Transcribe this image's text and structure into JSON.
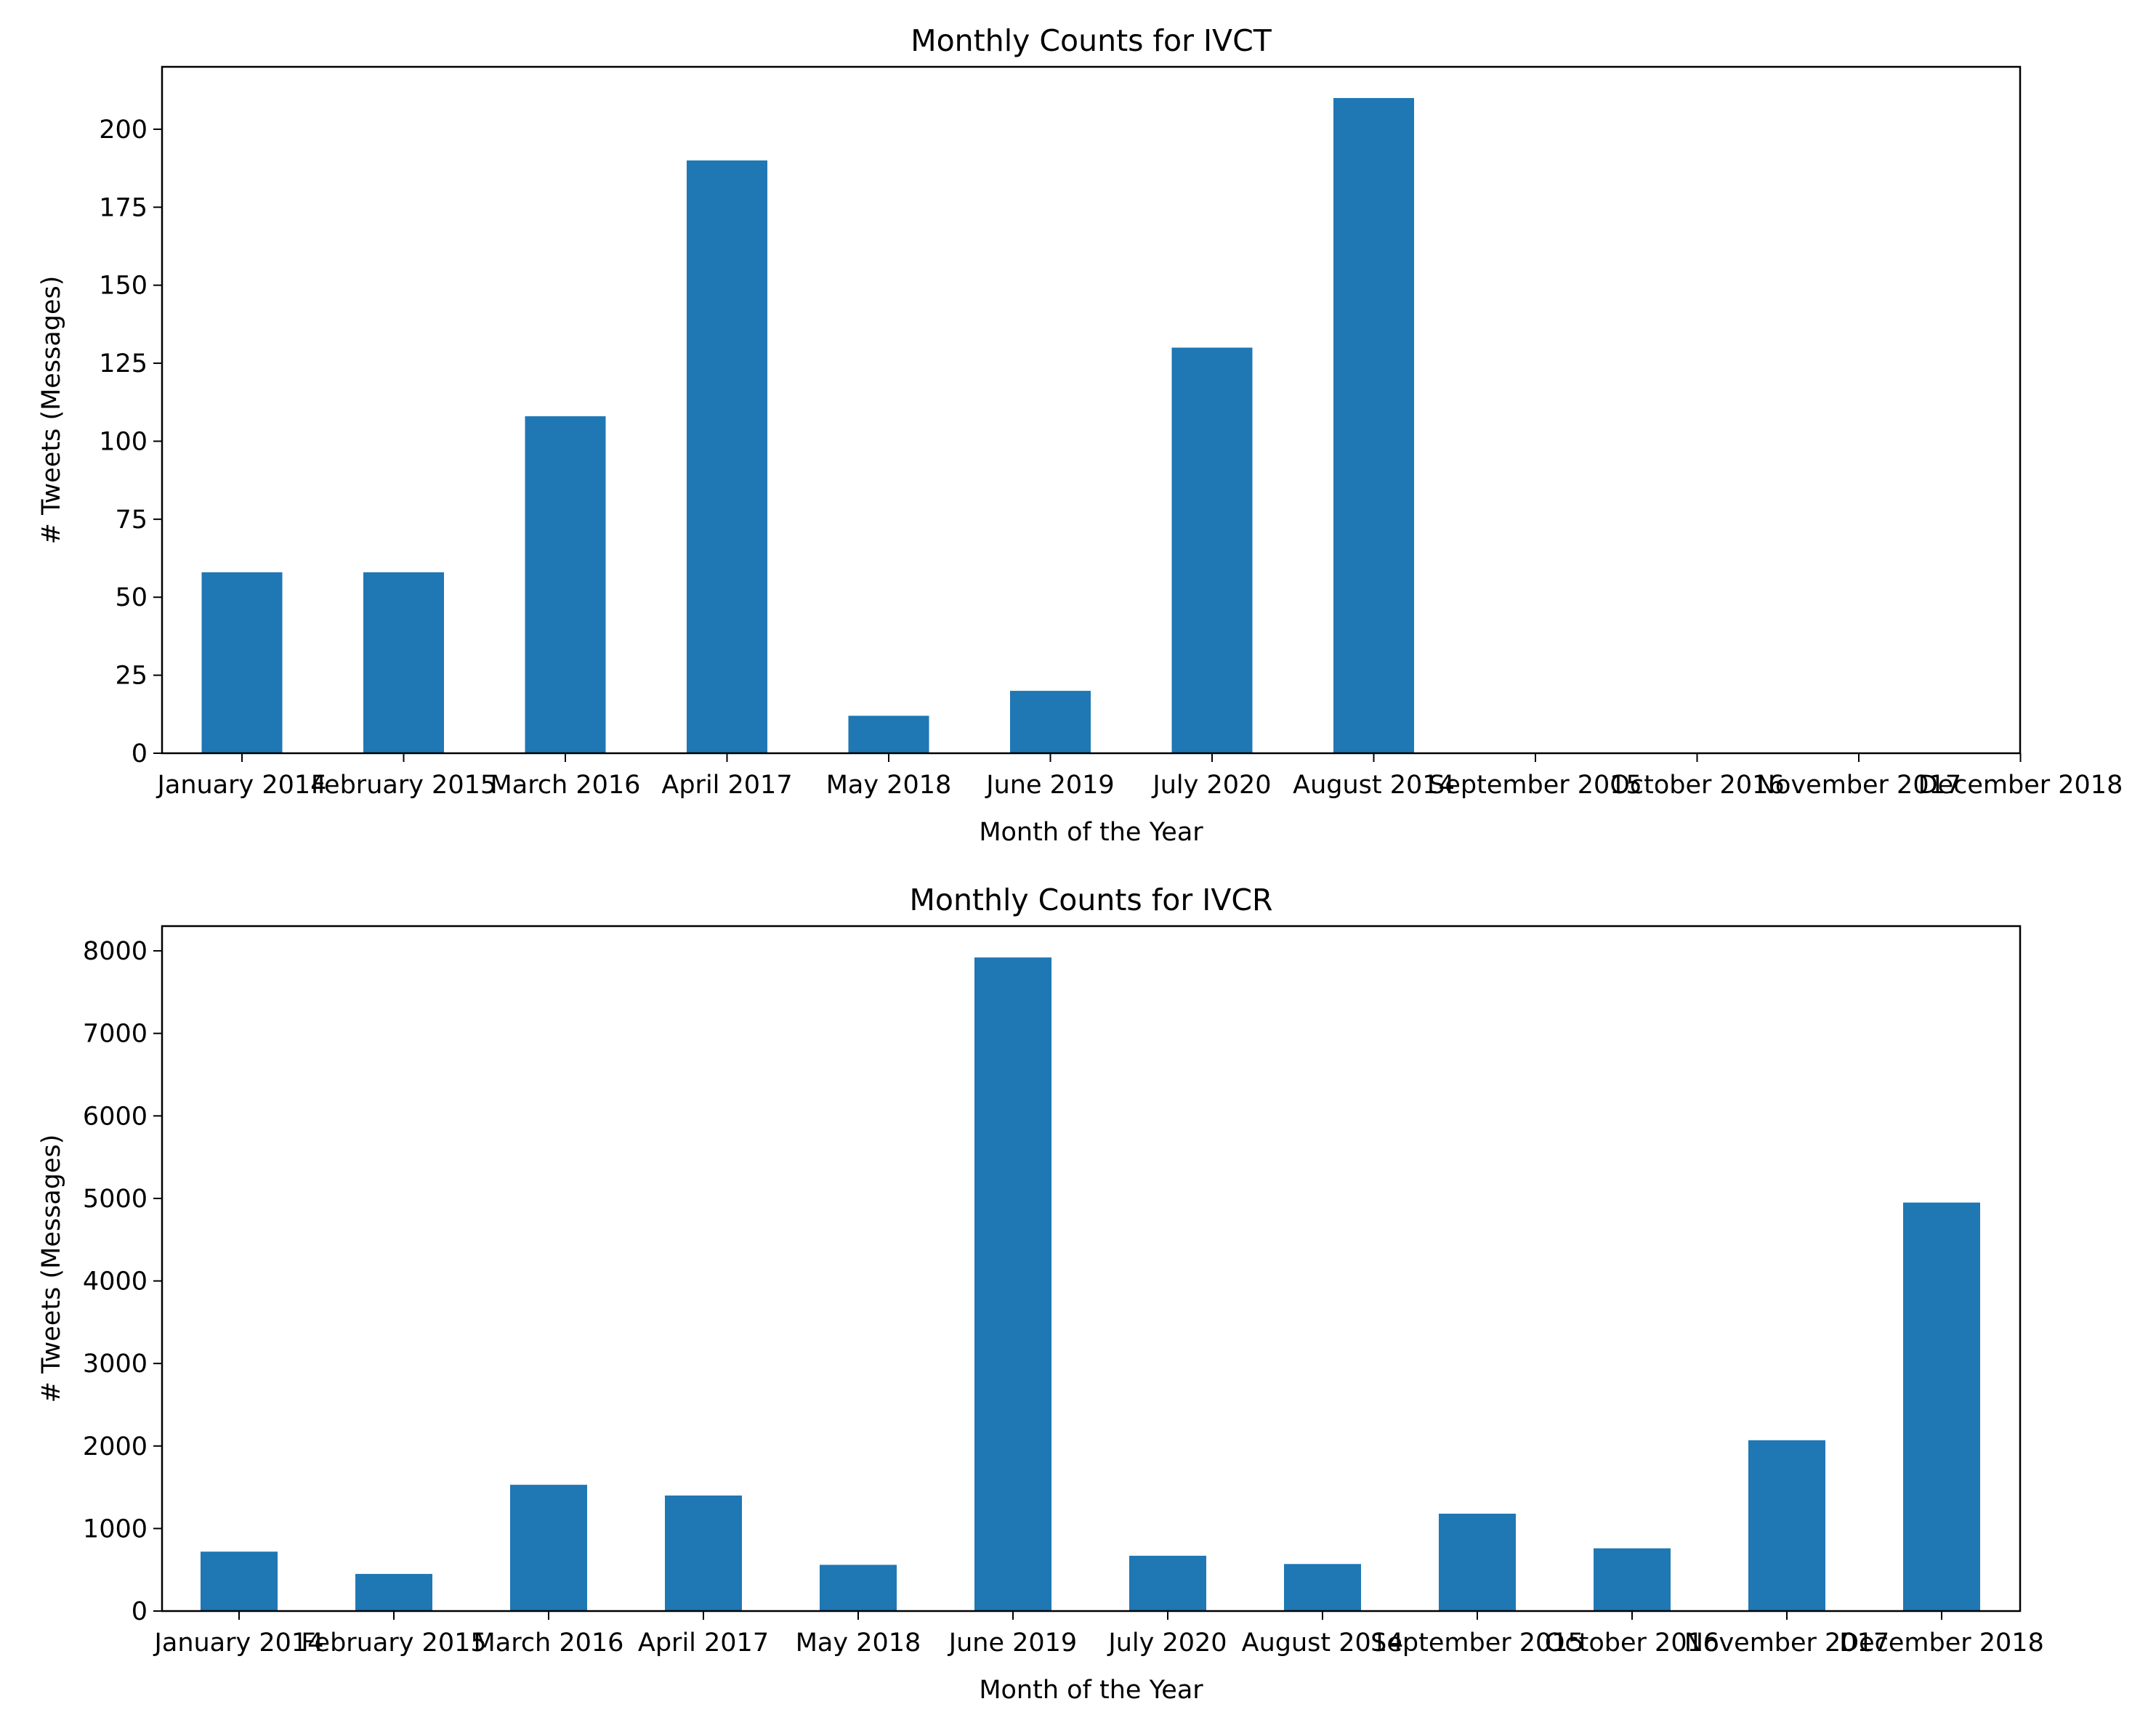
{
  "chart_data": [
    {
      "type": "bar",
      "title": "Monthly Counts for IVCT",
      "xlabel": "Month of the Year",
      "ylabel": "# Tweets (Messages)",
      "categories": [
        "January 2014",
        "February 2015",
        "March 2016",
        "April 2017",
        "May 2018",
        "June 2019",
        "July 2020",
        "August 2014",
        "September 2015",
        "October 2016",
        "November 2017",
        "December 2018"
      ],
      "values": [
        58,
        58,
        108,
        190,
        12,
        20,
        130,
        210,
        0,
        0,
        0,
        0
      ],
      "ylim": [
        0,
        220
      ],
      "yticks": [
        0,
        25,
        50,
        75,
        100,
        125,
        150,
        175,
        200
      ],
      "color": "#1f77b4",
      "grid": false
    },
    {
      "type": "bar",
      "title": "Monthly Counts for IVCR",
      "xlabel": "Month of the Year",
      "ylabel": "# Tweets (Messages)",
      "categories": [
        "January 2014",
        "February 2015",
        "March 2016",
        "April 2017",
        "May 2018",
        "June 2019",
        "July 2020",
        "August 2014",
        "September 2015",
        "October 2016",
        "November 2017",
        "December 2018"
      ],
      "values": [
        720,
        450,
        1530,
        1400,
        560,
        7920,
        670,
        570,
        1180,
        760,
        2070,
        4950
      ],
      "ylim": [
        0,
        8300
      ],
      "yticks": [
        0,
        1000,
        2000,
        3000,
        4000,
        5000,
        6000,
        7000,
        8000
      ],
      "color": "#1f77b4",
      "grid": false
    }
  ]
}
